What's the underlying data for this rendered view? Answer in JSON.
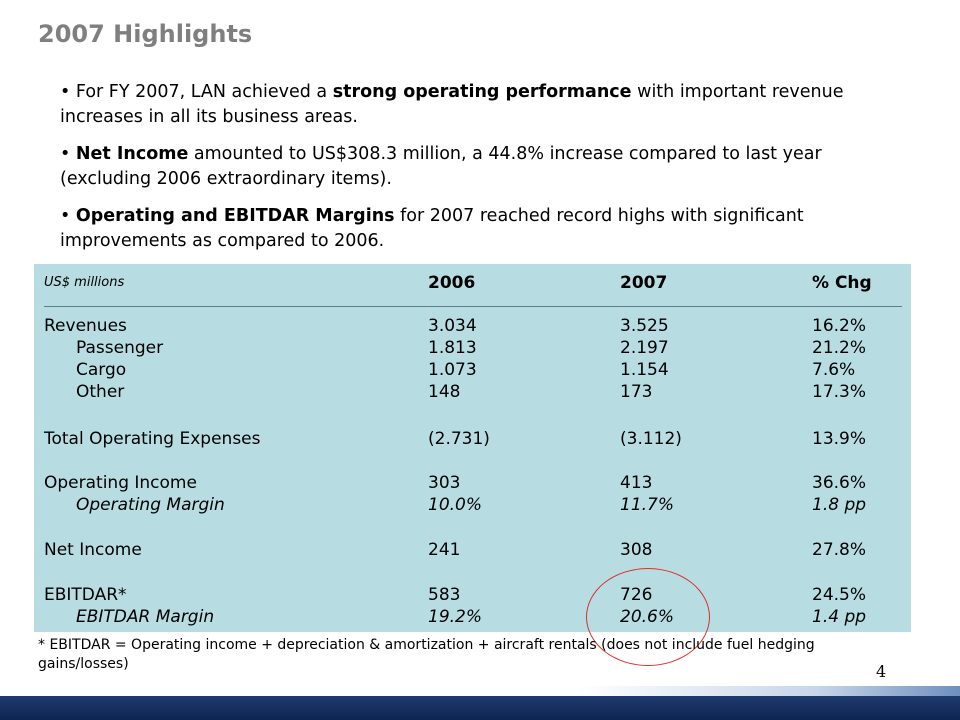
{
  "title": "2007 Highlights",
  "bullets": [
    {
      "pre": "For FY 2007, LAN achieved a ",
      "bold": "strong operating performance",
      "post": " with important revenue increases in all its business areas."
    },
    {
      "pre": "",
      "bold": "Net Income",
      "post": " amounted to US$308.3 million, a 44.8% increase compared to last year (excluding 2006 extraordinary items)."
    },
    {
      "pre": "",
      "bold": "Operating and EBITDAR Margins",
      "post": " for 2007 reached record highs with significant improvements as compared to 2006."
    }
  ],
  "table": {
    "units": "US$ millions",
    "headers": [
      "2006",
      "2007",
      "% Chg"
    ],
    "rows": [
      {
        "label": "Revenues",
        "v2006": "3.034",
        "v2007": "3.525",
        "chg": "16.2%"
      },
      {
        "label": "Passenger",
        "v2006": "1.813",
        "v2007": "2.197",
        "chg": "21.2%"
      },
      {
        "label": "Cargo",
        "v2006": "1.073",
        "v2007": "1.154",
        "chg": "7.6%"
      },
      {
        "label": "Other",
        "v2006": "148",
        "v2007": "173",
        "chg": "17.3%"
      },
      {
        "label": "Total Operating Expenses",
        "v2006": "(2.731)",
        "v2007": "(3.112)",
        "chg": "13.9%"
      },
      {
        "label": "Operating Income",
        "v2006": "303",
        "v2007": "413",
        "chg": "36.6%"
      },
      {
        "label": "Operating Margin",
        "v2006": "10.0%",
        "v2007": "11.7%",
        "chg": "1.8 pp"
      },
      {
        "label": "Net Income",
        "v2006": "241",
        "v2007": "308",
        "chg": "27.8%"
      },
      {
        "label": "EBITDAR*",
        "v2006": "583",
        "v2007": "726",
        "chg": "24.5%"
      },
      {
        "label": "EBITDAR Margin",
        "v2006": "19.2%",
        "v2007": "20.6%",
        "chg": "1.4 pp"
      }
    ]
  },
  "footnote": "* EBITDAR = Operating income + depreciation & amortization + aircraft rentals (does not include fuel hedging gains/losses)",
  "page_number": "4",
  "colors": {
    "panel": "#b7dde3",
    "circle": "#d9302c",
    "footer": "#1f3a6e",
    "title": "#7f7f7f"
  }
}
